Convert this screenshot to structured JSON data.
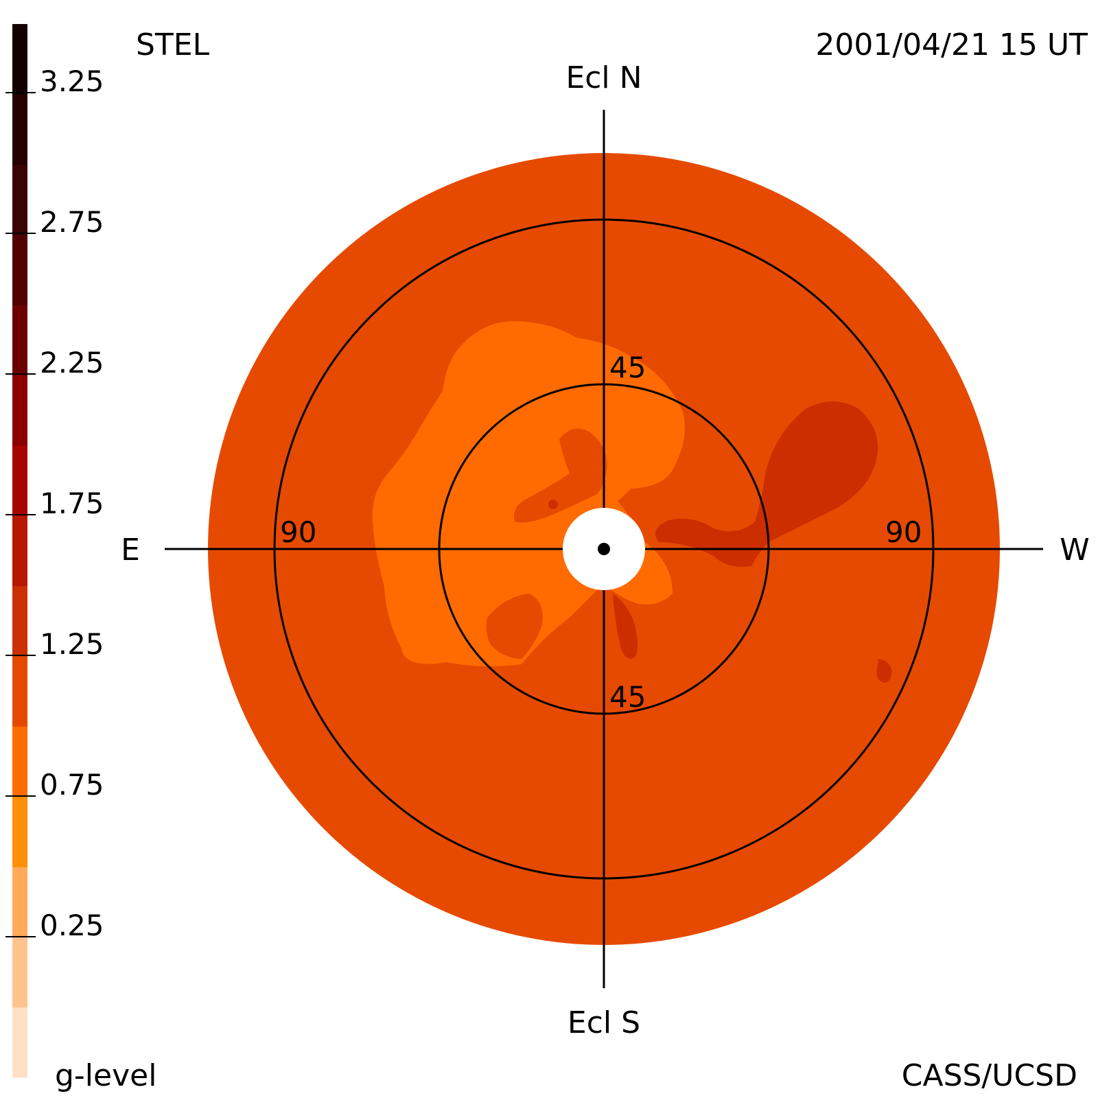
{
  "header": {
    "observatory": "STEL",
    "timestamp": "2001/04/21 15 UT",
    "credit": "CASS/UCSD"
  },
  "directions": {
    "north": "Ecl N",
    "south": "Ecl S",
    "east": "E",
    "west": "W"
  },
  "elongation_rings": {
    "inner_label": "45",
    "outer_label": "90"
  },
  "colorbar": {
    "title": "g-level",
    "tick_labels": [
      "3.25",
      "2.75",
      "2.25",
      "1.75",
      "1.25",
      "0.75",
      "0.25"
    ],
    "colors": [
      "#ffe0c6",
      "#ffc48e",
      "#ffa95a",
      "#ff8e08",
      "#ff6c00",
      "#e64800",
      "#cc3000",
      "#b81800",
      "#a80400",
      "#8c0000",
      "#6c0000",
      "#500000",
      "#3a0404",
      "#260000",
      "#140000"
    ]
  },
  "map_colors": {
    "background_disk": "#e64a00",
    "bright_region": "#ff6b00",
    "dense_region": "#cc2e00",
    "occulter": "#ffffff",
    "lines": "#000000"
  }
}
